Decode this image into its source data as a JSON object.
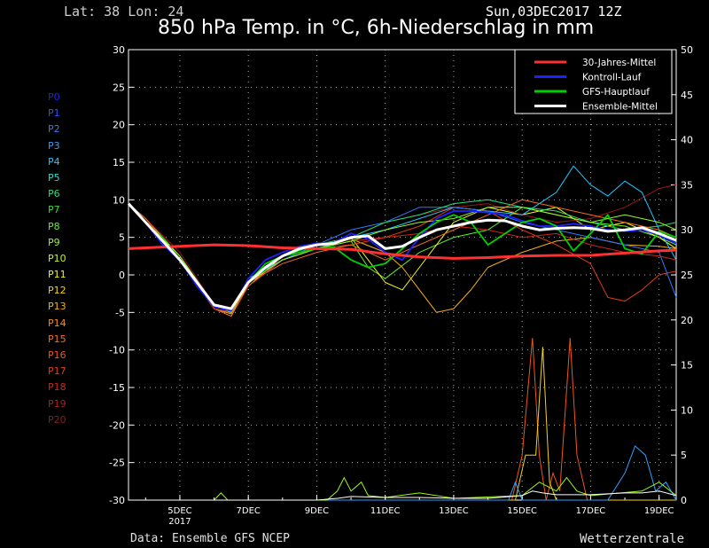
{
  "header": {
    "location": "Lat: 38 Lon: 24",
    "run": "Sun,03DEC2017 12Z",
    "title": "850 hPa Temp. in °C, 6h-Niederschlag in mm"
  },
  "footer": {
    "source": "Data: Ensemble GFS NCEP",
    "brand": "Wetterzentrale"
  },
  "members": [
    {
      "label": "P0",
      "color": "#1e1eff"
    },
    {
      "label": "P1",
      "color": "#2a55ff"
    },
    {
      "label": "P2",
      "color": "#2f7bff"
    },
    {
      "label": "P3",
      "color": "#2ea0ff"
    },
    {
      "label": "P4",
      "color": "#21c6ff"
    },
    {
      "label": "P5",
      "color": "#1de1d0"
    },
    {
      "label": "P6",
      "color": "#1ee07a"
    },
    {
      "label": "P7",
      "color": "#2fe03a"
    },
    {
      "label": "P8",
      "color": "#5ef02a"
    },
    {
      "label": "P9",
      "color": "#9af51e"
    },
    {
      "label": "P10",
      "color": "#c8f51a"
    },
    {
      "label": "P11",
      "color": "#f5f51a"
    },
    {
      "label": "P12",
      "color": "#f5d21a"
    },
    {
      "label": "P13",
      "color": "#f5b01a"
    },
    {
      "label": "P14",
      "color": "#f58e1a"
    },
    {
      "label": "P15",
      "color": "#f56e1a"
    },
    {
      "label": "P16",
      "color": "#f0561a"
    },
    {
      "label": "P17",
      "color": "#e03c1a"
    },
    {
      "label": "P18",
      "color": "#c8281a"
    },
    {
      "label": "P19",
      "color": "#b0201a"
    },
    {
      "label": "P20",
      "color": "#981818"
    }
  ],
  "chart_data": {
    "type": "line",
    "ylim": [
      -30,
      30
    ],
    "y2lim": [
      0,
      50
    ],
    "yticks": [
      30,
      25,
      20,
      15,
      10,
      5,
      0,
      -5,
      -10,
      -15,
      -20,
      -25,
      -30
    ],
    "y2ticks": [
      50,
      45,
      40,
      35,
      30,
      25,
      20,
      15,
      10,
      5,
      0
    ],
    "x_range_days": [
      3.5,
      19.5
    ],
    "xticks": [
      {
        "day": 5,
        "label": "5DEC",
        "sub": "2017"
      },
      {
        "day": 7,
        "label": "7DEC",
        "sub": ""
      },
      {
        "day": 9,
        "label": "9DEC",
        "sub": ""
      },
      {
        "day": 11,
        "label": "11DEC",
        "sub": ""
      },
      {
        "day": 13,
        "label": "13DEC",
        "sub": ""
      },
      {
        "day": 15,
        "label": "15DEC",
        "sub": ""
      },
      {
        "day": 17,
        "label": "17DEC",
        "sub": ""
      },
      {
        "day": 19,
        "label": "19DEC",
        "sub": ""
      }
    ],
    "legend": {
      "placement": "top-right",
      "entries": [
        {
          "name": "30-Jahres-Mittel",
          "color": "#ff3030"
        },
        {
          "name": "Kontroll-Lauf",
          "color": "#2020ff"
        },
        {
          "name": "GFS-Hauptlauf",
          "color": "#00d000"
        },
        {
          "name": "Ensemble-Mittel",
          "color": "#ffffff"
        }
      ]
    },
    "series": [
      {
        "name": "30-Jahres-Mittel",
        "color": "#ff3030",
        "width": 3,
        "x": [
          3.5,
          5,
          6,
          7,
          8,
          9,
          10,
          11,
          12,
          13,
          14,
          15,
          16,
          17,
          18,
          19,
          19.5
        ],
        "y": [
          3.5,
          3.8,
          4.0,
          3.9,
          3.6,
          3.5,
          3.4,
          2.8,
          2.4,
          2.2,
          2.3,
          2.5,
          2.6,
          2.6,
          2.9,
          3.2,
          3.3
        ]
      },
      {
        "name": "Ensemble-Mittel",
        "color": "#ffffff",
        "width": 3,
        "x": [
          3.5,
          4,
          4.5,
          5,
          5.5,
          6,
          6.5,
          7,
          7.5,
          8,
          8.5,
          9,
          9.5,
          10,
          10.5,
          11,
          11.5,
          12,
          12.5,
          13,
          13.5,
          14,
          14.5,
          15,
          15.5,
          16,
          16.5,
          17,
          17.5,
          18,
          18.5,
          19,
          19.5
        ],
        "y": [
          9.5,
          7,
          4.5,
          2,
          -1,
          -4,
          -4.5,
          -1,
          1,
          2.5,
          3.5,
          4,
          4.2,
          5,
          5.2,
          3.5,
          3.8,
          5,
          6,
          6.5,
          7,
          7.3,
          7.2,
          6.5,
          6,
          6.2,
          6.3,
          6.2,
          5.8,
          6,
          6.3,
          5.5,
          4.6
        ]
      },
      {
        "name": "Kontroll-Lauf",
        "color": "#2020ff",
        "width": 1.8,
        "x": [
          3.5,
          4,
          4.5,
          5,
          5.5,
          6,
          6.5,
          7,
          7.5,
          8,
          8.5,
          9,
          9.5,
          10,
          10.5,
          11,
          11.5,
          12,
          12.5,
          13,
          13.5,
          14,
          14.5,
          15,
          15.5,
          16,
          16.5,
          17,
          17.5,
          18,
          18.5,
          19,
          19.5
        ],
        "y": [
          9.5,
          7,
          4,
          2,
          -1.5,
          -4.2,
          -4.8,
          -0.5,
          2,
          3,
          3.8,
          4.2,
          4.3,
          5.5,
          4.8,
          3,
          2,
          5,
          7.5,
          8.5,
          8.5,
          8.3,
          8,
          7.2,
          6.5,
          6.5,
          6.8,
          6.5,
          6,
          5.8,
          6,
          5.3,
          4.2
        ]
      },
      {
        "name": "GFS-Hauptlauf",
        "color": "#00d000",
        "width": 1.8,
        "x": [
          3.5,
          4,
          4.5,
          5,
          5.5,
          6,
          6.5,
          7,
          7.5,
          8,
          8.5,
          9,
          9.5,
          10,
          10.5,
          11,
          11.5,
          12,
          12.5,
          13,
          13.5,
          14,
          14.5,
          15,
          15.5,
          16,
          16.5,
          17,
          17.5,
          18,
          18.5,
          19,
          19.5
        ],
        "y": [
          9.5,
          7,
          4.5,
          2,
          -1,
          -4,
          -4.5,
          -1,
          1.5,
          2.5,
          3,
          3.5,
          3.7,
          2,
          1,
          1.5,
          3.5,
          5.5,
          7,
          8,
          7,
          4,
          5.5,
          7,
          7.5,
          6.5,
          3.2,
          5.5,
          8,
          3.5,
          2.8,
          5.8,
          5
        ]
      },
      {
        "name": "P8",
        "color": "#5ef02a",
        "width": 1,
        "x": [
          3.5,
          4,
          5,
          6,
          6.5,
          7,
          8,
          9,
          10,
          10.5,
          11,
          12,
          13,
          14,
          15,
          16,
          17,
          18,
          19,
          19.5
        ],
        "y": [
          9.5,
          7.5,
          2.5,
          -4,
          -5,
          -1,
          2,
          3.5,
          4.5,
          1,
          -0.5,
          3,
          5,
          6,
          9,
          8,
          7,
          6.5,
          5,
          4
        ]
      },
      {
        "name": "P11",
        "color": "#f5f51a",
        "width": 1,
        "x": [
          3.5,
          4,
          5,
          6,
          6.5,
          7,
          8,
          9,
          10,
          10.5,
          11,
          11.5,
          12,
          12.5,
          13,
          14,
          15,
          16,
          17,
          18,
          19,
          19.5
        ],
        "y": [
          9.5,
          7,
          2,
          -4.5,
          -5,
          -1.5,
          2.5,
          4,
          5,
          2,
          -1,
          -2,
          1,
          4,
          7,
          9,
          8,
          9,
          6,
          7,
          5,
          3.5
        ]
      },
      {
        "name": "P13",
        "color": "#f5b01a",
        "width": 1,
        "x": [
          3.5,
          4,
          5,
          6,
          6.5,
          7,
          8,
          9,
          10,
          11,
          11.5,
          12,
          12.5,
          13,
          13.5,
          14,
          15,
          16,
          17,
          18,
          19,
          19.5
        ],
        "y": [
          9.5,
          7,
          2,
          -4.5,
          -5.2,
          -1,
          2,
          3.5,
          4.8,
          3,
          1,
          -2,
          -5,
          -4.5,
          -2,
          1,
          3,
          4.5,
          5,
          4,
          3.8,
          3.5
        ]
      },
      {
        "name": "P17",
        "color": "#e03c1a",
        "width": 1,
        "x": [
          3.5,
          4,
          5,
          6,
          6.5,
          7,
          8,
          9,
          10,
          11,
          12,
          13,
          14,
          15,
          16,
          17,
          17.5,
          18,
          18.5,
          19,
          19.5
        ],
        "y": [
          9.5,
          7,
          2,
          -4.5,
          -5.5,
          -1.5,
          2,
          3.5,
          4,
          5,
          6.5,
          9,
          8.5,
          6,
          4,
          1.5,
          -3,
          -3.5,
          -2,
          0,
          0.5
        ]
      },
      {
        "name": "P20",
        "color": "#981818",
        "width": 1,
        "x": [
          3.5,
          4,
          5,
          6,
          6.5,
          7,
          8,
          9,
          10,
          11,
          12,
          13,
          14,
          15,
          16,
          17,
          18,
          19,
          19.5
        ],
        "y": [
          9.5,
          7.5,
          3,
          -4,
          -5,
          -1,
          2,
          3.5,
          5,
          7,
          8,
          9,
          9.5,
          8,
          7,
          7.5,
          9,
          11.5,
          12
        ]
      },
      {
        "name": "P4",
        "color": "#21c6ff",
        "width": 1,
        "x": [
          3.5,
          4,
          5,
          6,
          6.5,
          7,
          8,
          9,
          10,
          11,
          12,
          13,
          14,
          15,
          16,
          16.5,
          17,
          17.5,
          18,
          18.5,
          19,
          19.5
        ],
        "y": [
          9.5,
          7,
          2.5,
          -4,
          -4.8,
          -0.5,
          2,
          3.5,
          5,
          6,
          7.5,
          9,
          8.5,
          8,
          11,
          14.5,
          12,
          10.5,
          12.5,
          11,
          6,
          2
        ]
      },
      {
        "name": "P2",
        "color": "#2f7bff",
        "width": 1,
        "x": [
          3.5,
          4,
          5,
          6,
          6.5,
          7,
          8,
          9,
          10,
          11,
          12,
          13,
          14,
          15,
          16,
          17,
          18,
          19,
          19.5
        ],
        "y": [
          9.5,
          7,
          2,
          -4.5,
          -5,
          -1,
          2,
          4,
          6,
          7,
          9,
          9,
          8.5,
          7,
          6,
          5,
          4,
          3,
          -3
        ]
      },
      {
        "name": "P6",
        "color": "#1ee07a",
        "width": 1,
        "x": [
          3.5,
          4,
          5,
          6,
          6.5,
          7,
          8,
          9,
          10,
          11,
          12,
          13,
          14,
          15,
          16,
          17,
          18,
          19,
          19.5
        ],
        "y": [
          9.5,
          7,
          2,
          -4.5,
          -5,
          -1,
          2.5,
          4,
          5,
          7,
          8,
          9.5,
          10,
          9,
          8.5,
          7,
          6,
          6.5,
          7
        ]
      },
      {
        "name": "P15",
        "color": "#f56e1a",
        "width": 1,
        "x": [
          3.5,
          4,
          5,
          6,
          6.5,
          7,
          8,
          9,
          10,
          10.5,
          11,
          12,
          13,
          14,
          15,
          16,
          17,
          18,
          19,
          19.5
        ],
        "y": [
          9.5,
          7.5,
          2,
          -4.5,
          -5.5,
          -1,
          1.5,
          3,
          4,
          3,
          2,
          4,
          6,
          8,
          10,
          9,
          8,
          7,
          6,
          5
        ]
      },
      {
        "name": "P18",
        "color": "#c8281a",
        "width": 1,
        "x": [
          3.5,
          4,
          5,
          6,
          6.5,
          7,
          8,
          9,
          10,
          11,
          12,
          13,
          14,
          15,
          16,
          17,
          18,
          19,
          19.5
        ],
        "y": [
          9.5,
          7,
          2,
          -4.5,
          -5,
          -1,
          2,
          3.5,
          4.5,
          5,
          5.5,
          6.5,
          6,
          5,
          5.5,
          4,
          3,
          2.5,
          2
        ]
      },
      {
        "name": "P9",
        "color": "#9af51e",
        "width": 1,
        "x": [
          3.5,
          4,
          5,
          6,
          6.5,
          7,
          8,
          9,
          10,
          11,
          12,
          13,
          14,
          15,
          16,
          17,
          18,
          19,
          19.5
        ],
        "y": [
          9.5,
          7,
          2.5,
          -4,
          -5,
          -1,
          2,
          3.5,
          4.5,
          6,
          7,
          7.5,
          9,
          9,
          8,
          7,
          8,
          7,
          6
        ]
      }
    ],
    "precip_series": [
      {
        "name": "P16",
        "color": "#f0561a",
        "x": [
          3.5,
          14.7,
          15.0,
          15.3,
          15.5,
          15.7,
          15.9,
          16.1,
          16.4,
          16.6,
          16.9,
          17.1,
          19.5
        ],
        "y": [
          0,
          0,
          5,
          18,
          5,
          0,
          3,
          1,
          18,
          5,
          0,
          0,
          0
        ]
      },
      {
        "name": "P12",
        "color": "#f5d21a",
        "x": [
          3.5,
          14.8,
          15.1,
          15.4,
          15.6,
          15.8,
          16.0,
          16.3,
          19.5
        ],
        "y": [
          0,
          0,
          5,
          5,
          17,
          2,
          0,
          0,
          0
        ]
      },
      {
        "name": "P3",
        "color": "#2ea0ff",
        "x": [
          3.5,
          14.6,
          14.8,
          15.0,
          17.5,
          18.0,
          18.3,
          18.6,
          18.9,
          19.2,
          19.5
        ],
        "y": [
          0,
          0,
          2,
          0,
          0,
          3,
          6,
          5,
          1,
          2,
          0
        ]
      },
      {
        "name": "P9",
        "color": "#9af51e",
        "x": [
          3.5,
          5,
          6,
          6.2,
          6.4,
          9.3,
          9.6,
          9.8,
          10,
          10.3,
          10.5,
          11,
          12,
          13,
          15,
          15.5,
          16,
          16.3,
          16.6,
          17,
          18.5,
          19,
          19.5
        ],
        "y": [
          0,
          0,
          0,
          0.8,
          0,
          0,
          1,
          2.5,
          1,
          2,
          0.5,
          0.3,
          0.8,
          0.2,
          0.5,
          2,
          1,
          2.5,
          1,
          0.5,
          1,
          2,
          0.5
        ]
      },
      {
        "name": "Ensemble-Mittel",
        "color": "#ffffff",
        "x": [
          3.5,
          9.0,
          9.6,
          10,
          11,
          12,
          13,
          14,
          15,
          15.3,
          15.6,
          16,
          17,
          18,
          18.5,
          19,
          19.5
        ],
        "y": [
          0,
          0,
          0.2,
          0.4,
          0.3,
          0.3,
          0.2,
          0.2,
          0.5,
          1,
          0.8,
          0.6,
          0.6,
          0.8,
          0.8,
          1,
          0.5
        ]
      }
    ]
  }
}
